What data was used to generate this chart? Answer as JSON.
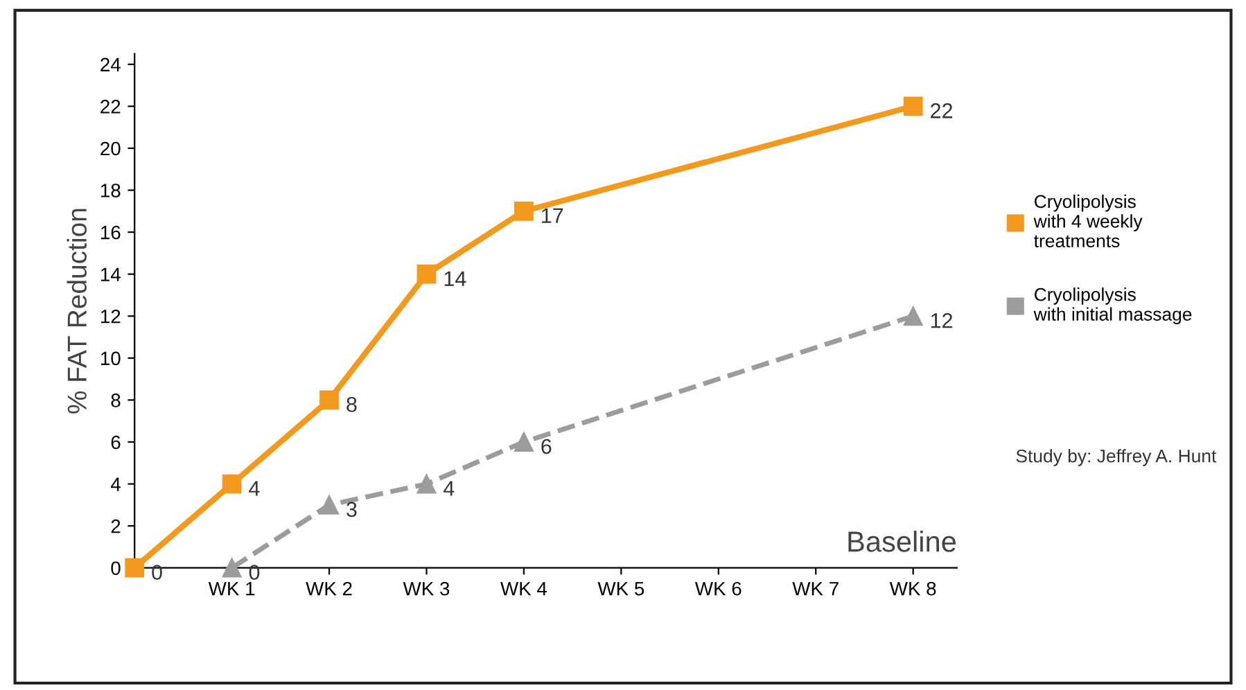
{
  "chart_data": {
    "type": "line",
    "ylabel": "% FAT Reduction",
    "xlabel": "Baseline",
    "categories": [
      null,
      "WK 1",
      "WK 2",
      "WK 3",
      "WK 4",
      "WK 5",
      "WK 6",
      "WK 7",
      "WK 8"
    ],
    "series": [
      {
        "name": "Cryolipolysis\nwith 4 weekly\ntreatments",
        "color": "#f39a1e",
        "marker": "square",
        "line_style": "solid",
        "values": [
          0,
          4,
          8,
          14,
          17,
          null,
          null,
          null,
          22
        ]
      },
      {
        "name": "Cryolipolysis\nwith initial massage",
        "color": "#9c9c9c",
        "marker": "triangle",
        "line_style": "dashed",
        "values": [
          null,
          0,
          3,
          4,
          6,
          null,
          null,
          null,
          12
        ]
      }
    ],
    "ylim": [
      0,
      24.5
    ],
    "yticks": [
      0,
      2,
      4,
      6,
      8,
      10,
      12,
      14,
      16,
      18,
      20,
      22,
      24
    ],
    "data_labels": true,
    "grid": false,
    "legend": "right",
    "annotations": [
      "Study by: Jeffrey A. Hunt"
    ]
  }
}
